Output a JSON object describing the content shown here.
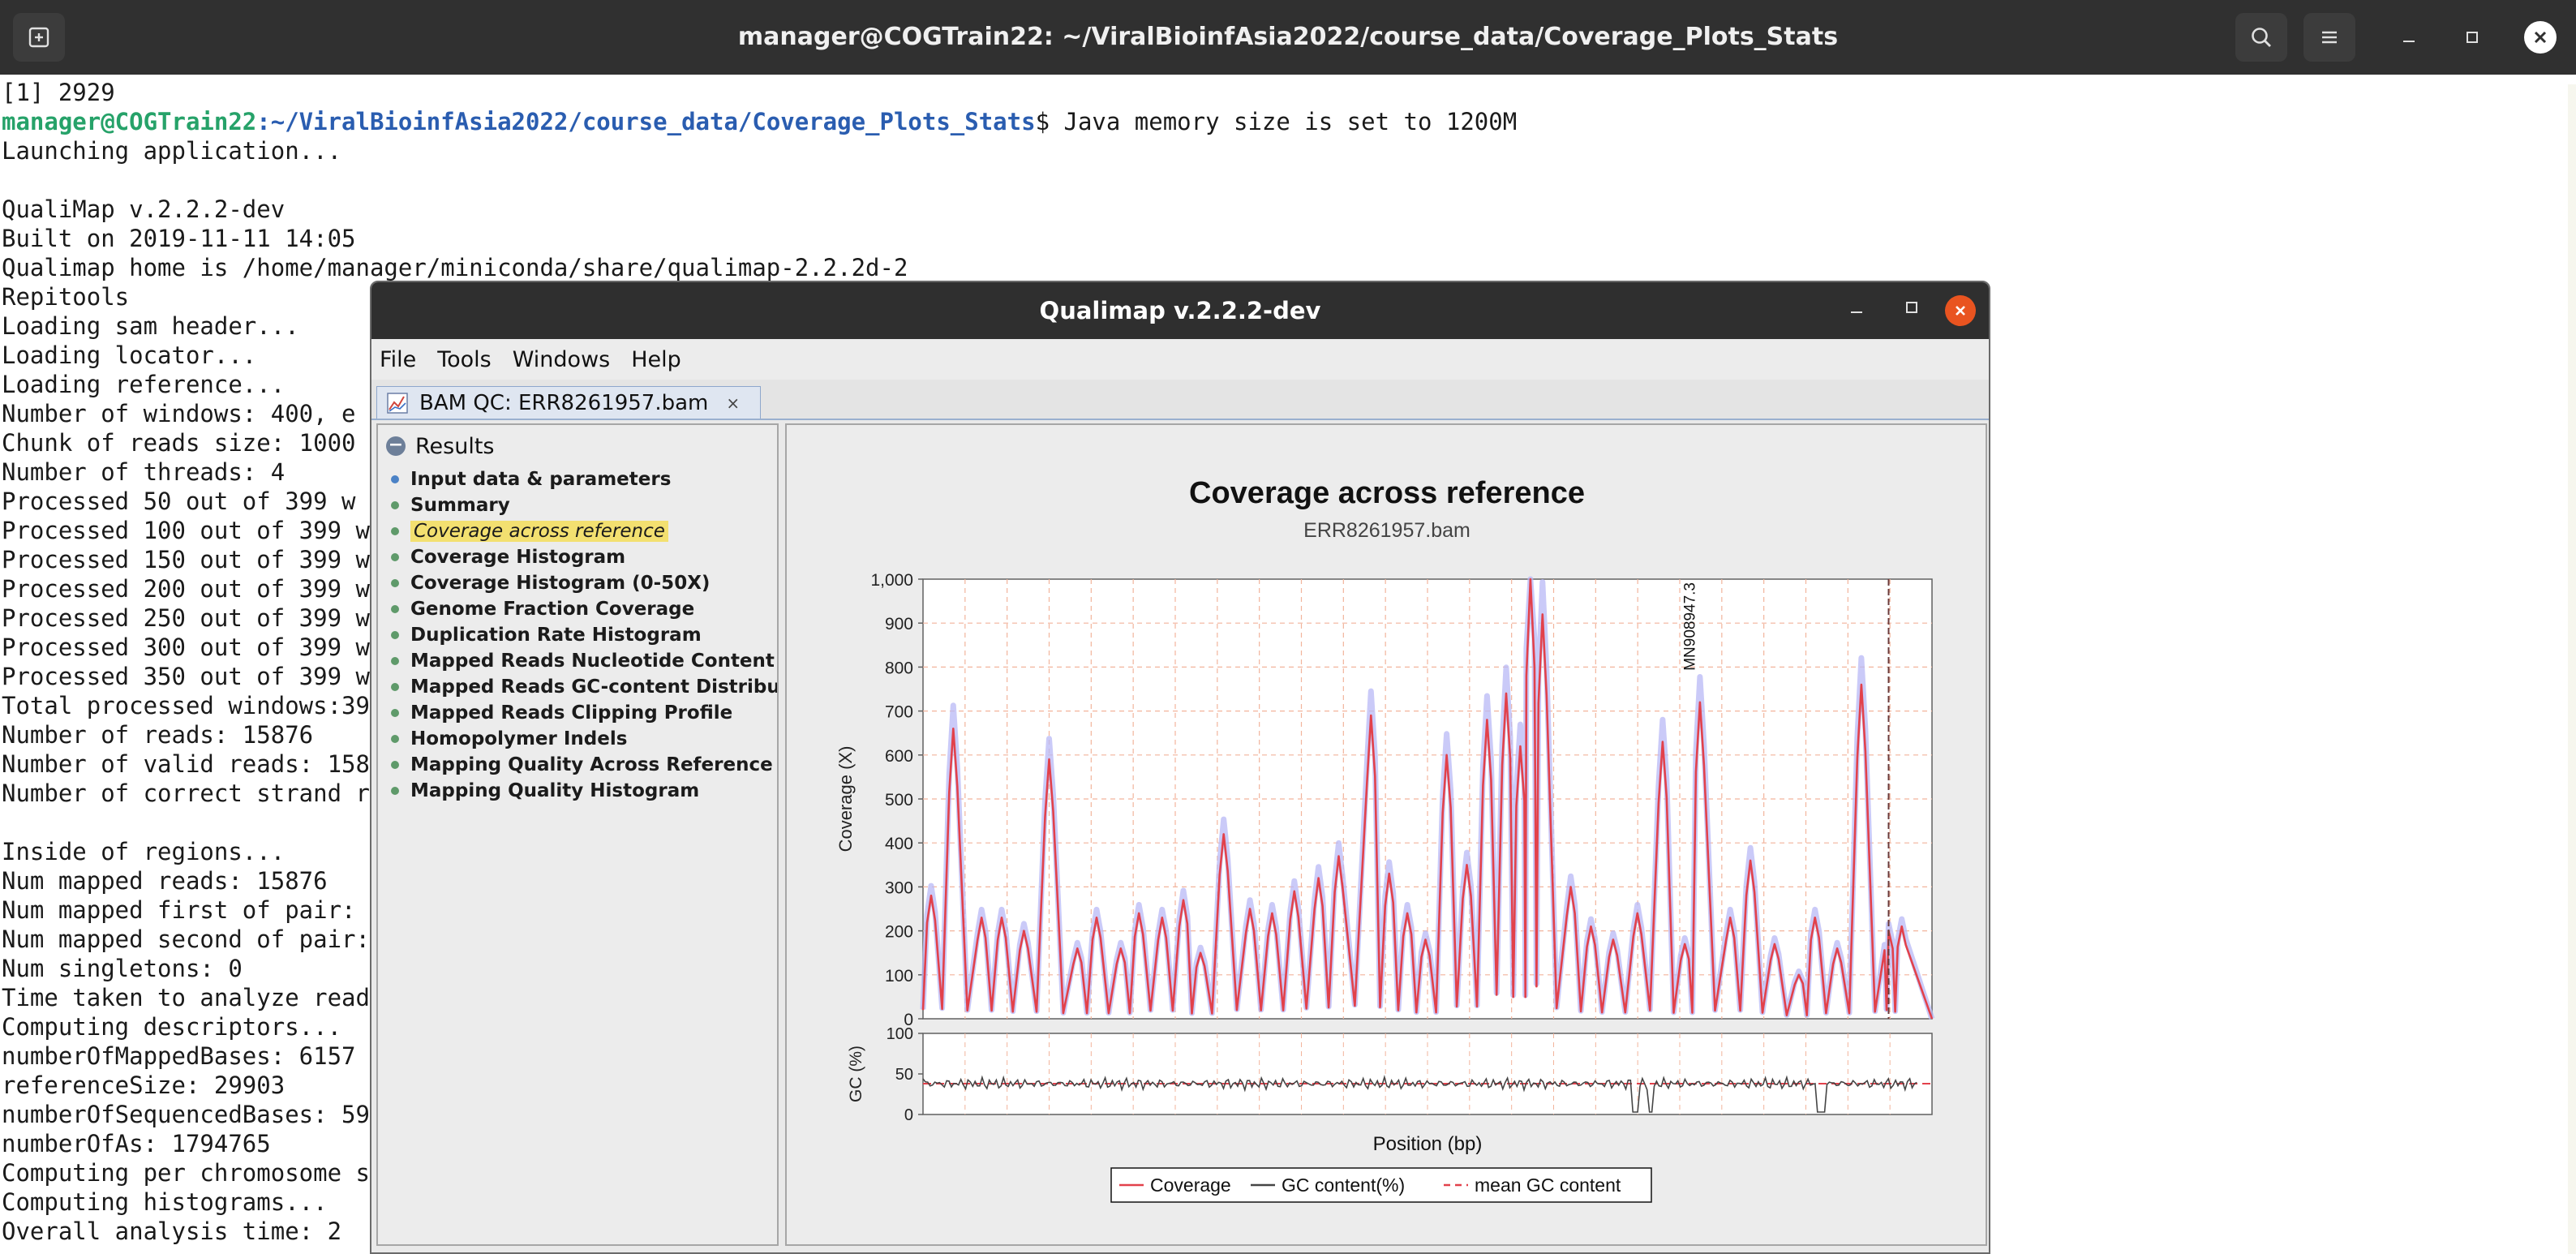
{
  "header": {
    "title": "manager@COGTrain22: ~/ViralBioinfAsia2022/course_data/Coverage_Plots_Stats"
  },
  "terminal": {
    "lines": [
      {
        "text": "[1] 2929"
      },
      {
        "user": "manager@COGTrain22",
        "path": ":~/ViralBioinfAsia2022/course_data/Coverage_Plots_Stats",
        "text": "$ Java memory size is set to 1200M"
      },
      {
        "text": "Launching application..."
      },
      {
        "text": ""
      },
      {
        "text": "QualiMap v.2.2.2-dev"
      },
      {
        "text": "Built on 2019-11-11 14:05"
      },
      {
        "text": "Qualimap home is /home/manager/miniconda/share/qualimap-2.2.2d-2"
      },
      {
        "text": "Repitools"
      },
      {
        "text": "Loading sam header..."
      },
      {
        "text": "Loading locator..."
      },
      {
        "text": "Loading reference..."
      },
      {
        "text": "Number of windows: 400, e"
      },
      {
        "text": "Chunk of reads size: 1000"
      },
      {
        "text": "Number of threads: 4"
      },
      {
        "text": "Processed 50 out of 399 w"
      },
      {
        "text": "Processed 100 out of 399 w"
      },
      {
        "text": "Processed 150 out of 399 w"
      },
      {
        "text": "Processed 200 out of 399 w"
      },
      {
        "text": "Processed 250 out of 399 w"
      },
      {
        "text": "Processed 300 out of 399 w"
      },
      {
        "text": "Processed 350 out of 399 w"
      },
      {
        "text": "Total processed windows:39"
      },
      {
        "text": "Number of reads: 15876"
      },
      {
        "text": "Number of valid reads: 158"
      },
      {
        "text": "Number of correct strand r"
      },
      {
        "text": ""
      },
      {
        "text": "Inside of regions..."
      },
      {
        "text": "Num mapped reads: 15876"
      },
      {
        "text": "Num mapped first of pair:"
      },
      {
        "text": "Num mapped second of pair:"
      },
      {
        "text": "Num singletons: 0"
      },
      {
        "text": "Time taken to analyze read"
      },
      {
        "text": "Computing descriptors..."
      },
      {
        "text": "numberOfMappedBases: 6157"
      },
      {
        "text": "referenceSize: 29903"
      },
      {
        "text": "numberOfSequencedBases: 59"
      },
      {
        "text": "numberOfAs: 1794765"
      },
      {
        "text": "Computing per chromosome s"
      },
      {
        "text": "Computing histograms..."
      },
      {
        "text": "Overall analysis time: 2"
      }
    ]
  },
  "qualimap": {
    "title": "Qualimap v.2.2.2-dev",
    "menu": [
      "File",
      "Tools",
      "Windows",
      "Help"
    ],
    "tab_label": "BAM QC: ERR8261957.bam",
    "tab_close": "×",
    "results_label": "Results",
    "nav_items": [
      "Input data & parameters",
      "Summary",
      "Coverage across reference",
      "Coverage Histogram",
      "Coverage Histogram (0-50X)",
      "Genome Fraction Coverage",
      "Duplication Rate Histogram",
      "Mapped Reads Nucleotide Content",
      "Mapped Reads GC-content Distributi",
      "Mapped Reads Clipping Profile",
      "Homopolymer Indels",
      "Mapping Quality Across Reference",
      "Mapping Quality Histogram"
    ],
    "selected_nav_index": 2
  },
  "chart_data": {
    "type": "line",
    "title": "Coverage across reference",
    "subtitle": "ERR8261957.bam",
    "xlabel": "Position (bp)",
    "ylabel": "Coverage (X)",
    "ylim": [
      0,
      1000
    ],
    "y_ticks": [
      "0",
      "100",
      "200",
      "300",
      "400",
      "500",
      "600",
      "700",
      "800",
      "900",
      "1,000"
    ],
    "gc_ylabel": "GC (%)",
    "gc_ylim": [
      0,
      100
    ],
    "gc_ticks": [
      "0",
      "50",
      "100"
    ],
    "mean_gc": 38,
    "reference_label": "MN908947.3",
    "legend": [
      "Coverage",
      "GC content(%)",
      "mean GC content"
    ],
    "grid": true,
    "colors": {
      "coverage": "#e2414b",
      "coverage_band": "#b8b8f5",
      "gc": "#454545",
      "mean_gc": "#e2414b",
      "grid": "#f2b49c"
    },
    "coverage_peaks": [
      {
        "x": 0.008,
        "y": 280
      },
      {
        "x": 0.03,
        "y": 660
      },
      {
        "x": 0.058,
        "y": 230
      },
      {
        "x": 0.078,
        "y": 230
      },
      {
        "x": 0.1,
        "y": 200
      },
      {
        "x": 0.125,
        "y": 590
      },
      {
        "x": 0.153,
        "y": 160
      },
      {
        "x": 0.172,
        "y": 230
      },
      {
        "x": 0.196,
        "y": 160
      },
      {
        "x": 0.214,
        "y": 240
      },
      {
        "x": 0.237,
        "y": 230
      },
      {
        "x": 0.258,
        "y": 270
      },
      {
        "x": 0.275,
        "y": 150
      },
      {
        "x": 0.298,
        "y": 420
      },
      {
        "x": 0.324,
        "y": 250
      },
      {
        "x": 0.346,
        "y": 240
      },
      {
        "x": 0.368,
        "y": 290
      },
      {
        "x": 0.392,
        "y": 320
      },
      {
        "x": 0.412,
        "y": 370
      },
      {
        "x": 0.444,
        "y": 690
      },
      {
        "x": 0.462,
        "y": 330
      },
      {
        "x": 0.48,
        "y": 240
      },
      {
        "x": 0.498,
        "y": 180
      },
      {
        "x": 0.519,
        "y": 600
      },
      {
        "x": 0.539,
        "y": 350
      },
      {
        "x": 0.559,
        "y": 680
      },
      {
        "x": 0.578,
        "y": 740
      },
      {
        "x": 0.592,
        "y": 620
      },
      {
        "x": 0.602,
        "y": 1000
      },
      {
        "x": 0.614,
        "y": 920
      },
      {
        "x": 0.642,
        "y": 300
      },
      {
        "x": 0.662,
        "y": 210
      },
      {
        "x": 0.684,
        "y": 180
      },
      {
        "x": 0.708,
        "y": 240
      },
      {
        "x": 0.733,
        "y": 630
      },
      {
        "x": 0.755,
        "y": 170
      },
      {
        "x": 0.77,
        "y": 720
      },
      {
        "x": 0.8,
        "y": 230
      },
      {
        "x": 0.82,
        "y": 360
      },
      {
        "x": 0.844,
        "y": 170
      },
      {
        "x": 0.868,
        "y": 100
      },
      {
        "x": 0.884,
        "y": 230
      },
      {
        "x": 0.906,
        "y": 160
      },
      {
        "x": 0.93,
        "y": 760
      },
      {
        "x": 0.957,
        "y": 200
      },
      {
        "x": 0.97,
        "y": 210
      }
    ]
  }
}
